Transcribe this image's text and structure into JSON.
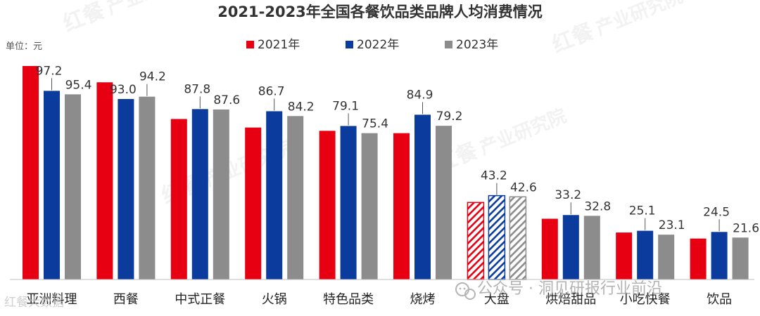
{
  "chart_data": {
    "type": "bar",
    "title": "2021-2023年全国各餐饮品类品牌人均消费情况",
    "unit_label": "单位：元",
    "categories": [
      "亚洲料理",
      "西餐",
      "中式正餐",
      "火锅",
      "特色品类",
      "烧烤",
      "大盘",
      "烘焙甜品",
      "小吃快餐",
      "饮品"
    ],
    "series": [
      {
        "name": "2021年",
        "color": "#e60012",
        "values": [
          110.0,
          101.6,
          82.7,
          78.3,
          76.6,
          75.4,
          39.7,
          31.3,
          24.2,
          21.1
        ]
      },
      {
        "name": "2022年",
        "color": "#0b3b9c",
        "values": [
          97.2,
          93.0,
          87.8,
          86.7,
          79.1,
          84.9,
          43.2,
          33.2,
          25.1,
          24.5
        ]
      },
      {
        "name": "2023年",
        "color": "#8c8c8c",
        "values": [
          95.4,
          94.2,
          87.6,
          84.2,
          75.4,
          79.2,
          42.6,
          32.8,
          23.1,
          21.6
        ]
      }
    ],
    "data_labels": {
      "2022年": [
        "97.2",
        "93.0",
        "87.8",
        "86.7",
        "79.1",
        "84.9",
        "43.2",
        "33.2",
        "25.1",
        "24.5"
      ],
      "2023年": [
        "95.4",
        "94.2",
        "87.6",
        "84.2",
        "75.4",
        "79.2",
        "42.6",
        "32.8",
        "23.1",
        "21.6"
      ]
    },
    "hatched_category": "大盘",
    "legend_position": "top-center",
    "ylim": [
      0,
      110
    ],
    "grid": false,
    "xlabel": "",
    "ylabel": ""
  },
  "watermark": {
    "brand": "红餐",
    "text": "产业研究院",
    "footer": "公众号 · 洞见研报行业前沿",
    "corner": "红餐大数据"
  }
}
